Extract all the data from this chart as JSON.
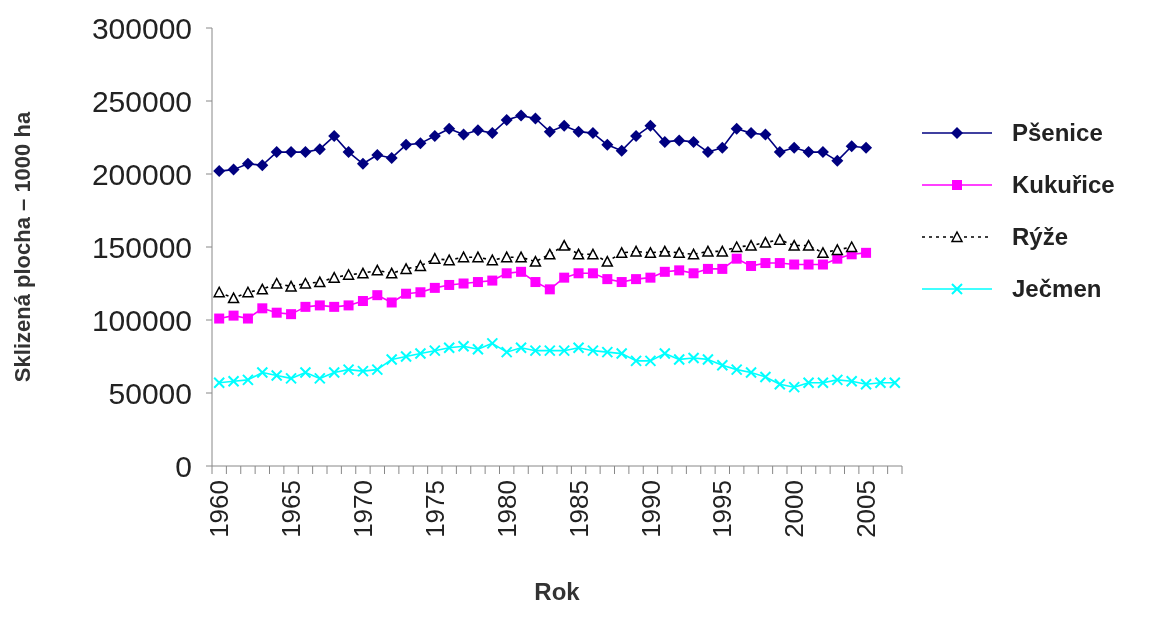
{
  "chart_data": {
    "type": "line",
    "xlabel": "Rok",
    "ylabel": "Sklizená plocha – 1000 ha",
    "categories": [
      "1960",
      null,
      null,
      null,
      null,
      "1965",
      null,
      null,
      null,
      null,
      "1970",
      null,
      null,
      null,
      null,
      "1975",
      null,
      null,
      null,
      null,
      "1980",
      null,
      null,
      null,
      null,
      "1985",
      null,
      null,
      null,
      null,
      "1990",
      null,
      null,
      null,
      null,
      "1995",
      null,
      null,
      null,
      null,
      "2000",
      null,
      null,
      null,
      null,
      "2005",
      null,
      null
    ],
    "ylim": [
      0,
      300000
    ],
    "yticks": [
      0,
      50000,
      100000,
      150000,
      200000,
      250000,
      300000
    ],
    "grid": false,
    "legend": "right",
    "series": [
      {
        "name": "Pšenice",
        "color": "#000080",
        "marker": "diamond",
        "line_style": "solid",
        "values": [
          202000,
          203000,
          207000,
          206000,
          215000,
          215000,
          215000,
          217000,
          226000,
          215000,
          207000,
          213000,
          211000,
          220000,
          221000,
          226000,
          231000,
          227000,
          230000,
          228000,
          237000,
          240000,
          238000,
          229000,
          233000,
          229000,
          228000,
          220000,
          216000,
          226000,
          233000,
          222000,
          223000,
          222000,
          215000,
          218000,
          231000,
          228000,
          227000,
          215000,
          218000,
          215000,
          215000,
          209000,
          219000,
          218000,
          null,
          null
        ]
      },
      {
        "name": "Kukuřice",
        "color": "#ff00ff",
        "marker": "square",
        "line_style": "solid",
        "values": [
          101000,
          103000,
          101000,
          108000,
          105000,
          104000,
          109000,
          110000,
          109000,
          110000,
          113000,
          117000,
          112000,
          118000,
          119000,
          122000,
          124000,
          125000,
          126000,
          127000,
          132000,
          133000,
          126000,
          121000,
          129000,
          132000,
          132000,
          128000,
          126000,
          128000,
          129000,
          133000,
          134000,
          132000,
          135000,
          135000,
          142000,
          137000,
          139000,
          139000,
          138000,
          138000,
          138000,
          142000,
          145000,
          146000,
          null,
          null
        ]
      },
      {
        "name": "Rýže",
        "color": "#000000",
        "marker": "triangle",
        "line_style": "dotted",
        "values": [
          119000,
          115000,
          119000,
          121000,
          125000,
          123000,
          125000,
          126000,
          129000,
          131000,
          132000,
          134000,
          132000,
          135000,
          137000,
          142000,
          141000,
          143000,
          143000,
          141000,
          143000,
          143000,
          140000,
          145000,
          151000,
          145000,
          145000,
          140000,
          146000,
          147000,
          146000,
          147000,
          146000,
          145000,
          147000,
          147000,
          150000,
          151000,
          153000,
          155000,
          151000,
          151000,
          146000,
          148000,
          150000,
          null,
          null,
          null
        ]
      },
      {
        "name": "Ječmen",
        "color": "#00ffff",
        "marker": "cross",
        "line_style": "solid",
        "values": [
          57000,
          58000,
          59000,
          64000,
          62000,
          60000,
          64000,
          60000,
          64000,
          66000,
          65000,
          66000,
          73000,
          75000,
          77000,
          79000,
          81000,
          82000,
          80000,
          84000,
          78000,
          81000,
          79000,
          79000,
          79000,
          81000,
          79000,
          78000,
          77000,
          72000,
          72000,
          77000,
          73000,
          74000,
          73000,
          69000,
          66000,
          64000,
          61000,
          56000,
          54000,
          57000,
          57000,
          59000,
          58000,
          56000,
          57000,
          57000
        ]
      }
    ]
  }
}
